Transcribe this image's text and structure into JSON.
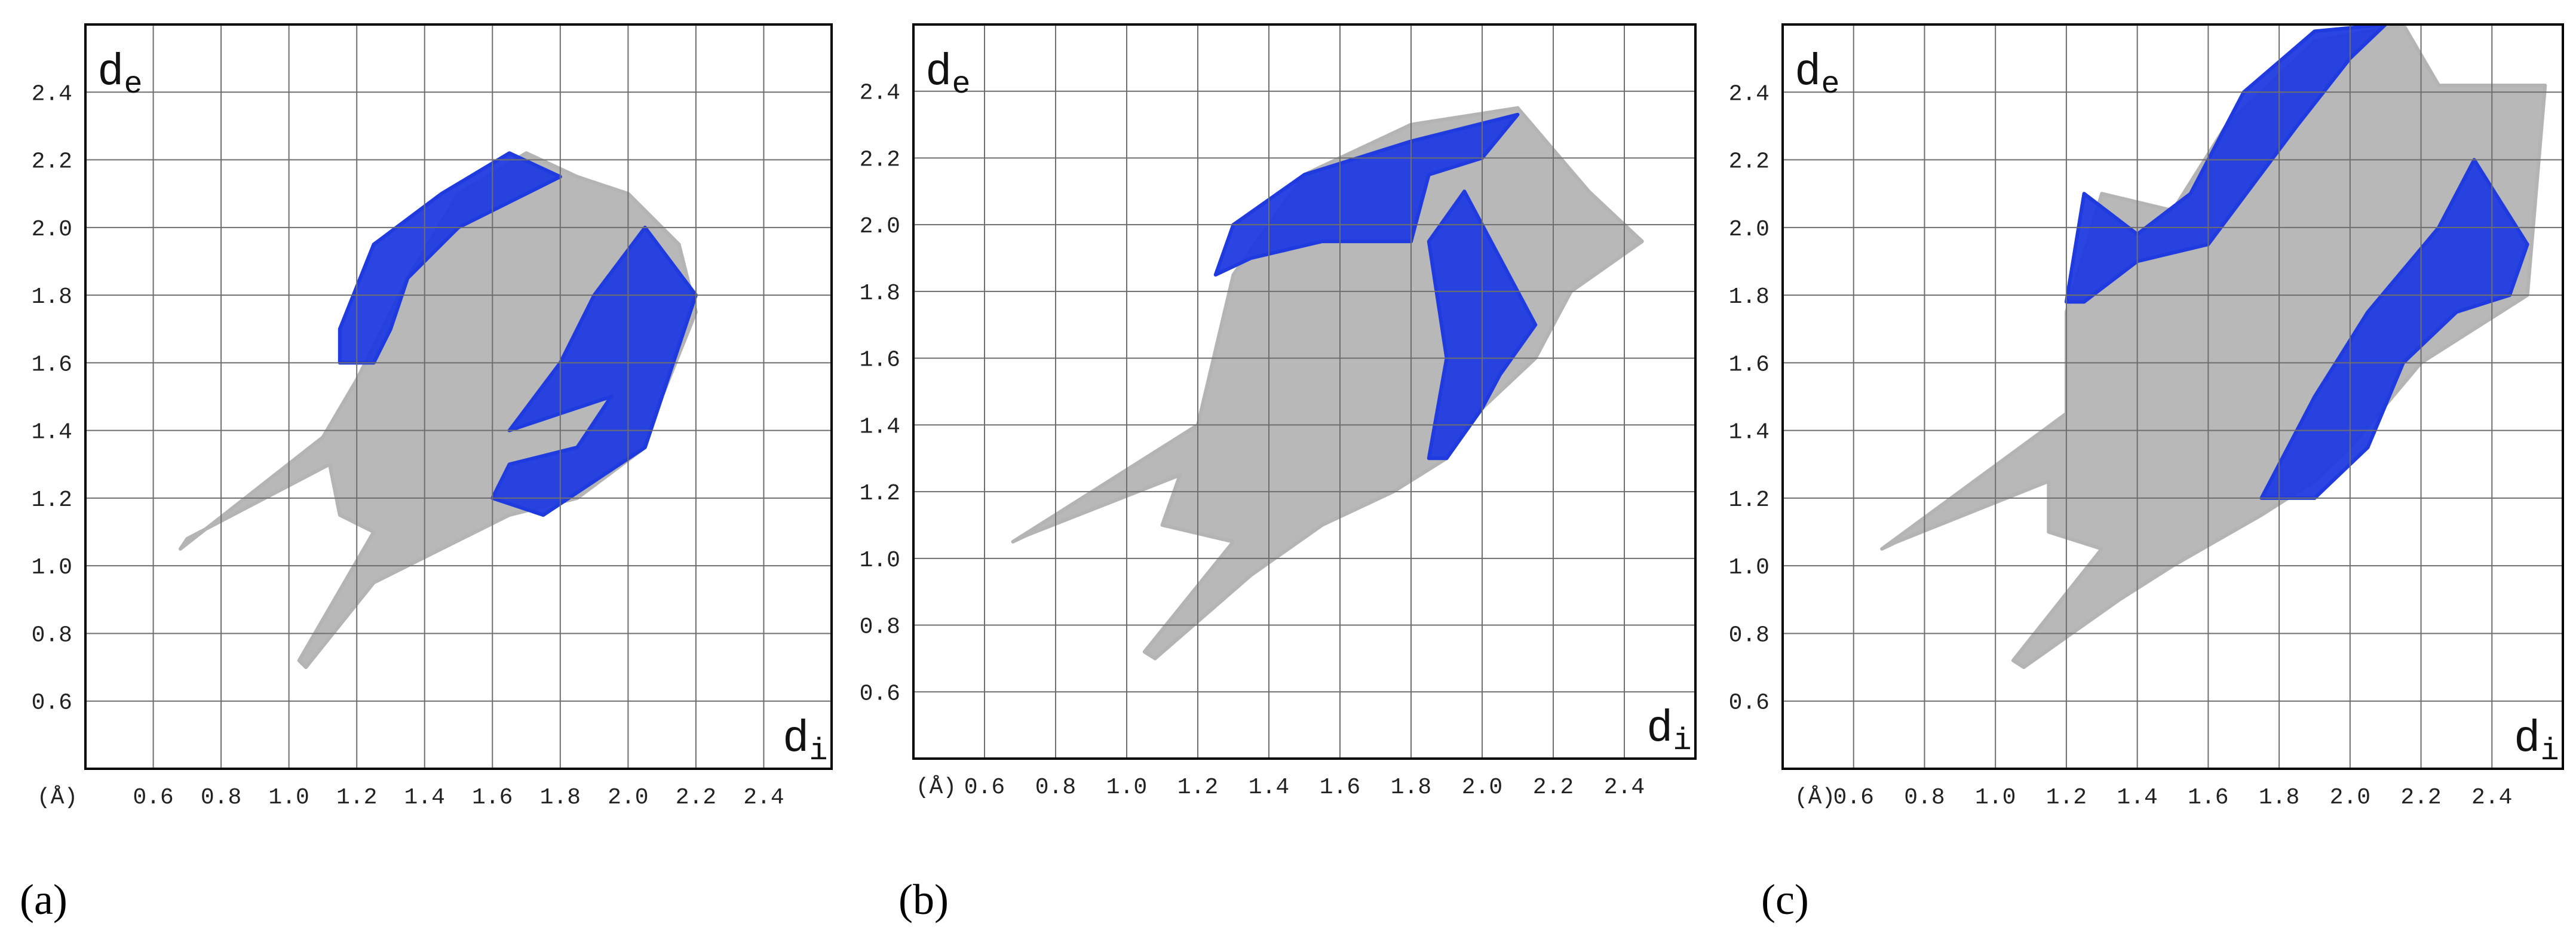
{
  "chart_data": [
    {
      "type": "fingerprint",
      "panel_label": "(a)",
      "unit_label": "(Å)",
      "ylabel": "d",
      "ylabel_sub": "e",
      "xlabel": "d",
      "xlabel_sub": "i",
      "xlim": [
        0.4,
        2.6
      ],
      "ylim": [
        0.4,
        2.6
      ],
      "xticks": [
        0.6,
        0.8,
        {
          "value": 1,
          "label": "1.0"
        },
        1.2,
        1.4,
        1.6,
        1.8,
        {
          "value": 2,
          "label": "2.0"
        },
        2.2,
        2.4
      ],
      "yticks": [
        0.6,
        0.8,
        {
          "value": 1,
          "label": "1.0"
        },
        1.2,
        1.4,
        1.6,
        1.8,
        {
          "value": 2,
          "label": "2.0"
        },
        2.2,
        2.4
      ],
      "grid": true,
      "series": [
        {
          "color": "#b4b4b4",
          "x": [
            0.68,
            1.1,
            1.2,
            1.35,
            1.5,
            1.7,
            1.85,
            2.0,
            2.15,
            2.2,
            2.1,
            2.05,
            1.85,
            1.65,
            1.45,
            1.25,
            1.05,
            1.03,
            1.25,
            1.15,
            1.12,
            0.7
          ],
          "y": [
            1.05,
            1.38,
            1.55,
            1.85,
            2.1,
            2.22,
            2.15,
            2.1,
            1.95,
            1.75,
            1.5,
            1.35,
            1.2,
            1.15,
            1.05,
            0.95,
            0.7,
            0.72,
            1.1,
            1.15,
            1.3,
            1.08
          ]
        },
        {
          "color": "#1f3be0",
          "x": [
            1.15,
            1.25,
            1.45,
            1.65,
            1.8,
            1.7,
            1.5,
            1.35,
            1.3,
            1.25,
            1.15
          ],
          "y": [
            1.7,
            1.95,
            2.1,
            2.22,
            2.15,
            2.1,
            2.0,
            1.85,
            1.7,
            1.6,
            1.6
          ]
        },
        {
          "color": "#1f3be0",
          "x": [
            1.65,
            1.8,
            1.9,
            2.05,
            2.2,
            2.1,
            2.05,
            1.9,
            1.75,
            1.6,
            1.65,
            1.85,
            1.95,
            1.8
          ],
          "y": [
            1.4,
            1.6,
            1.8,
            2.0,
            1.8,
            1.5,
            1.35,
            1.25,
            1.15,
            1.2,
            1.3,
            1.35,
            1.5,
            1.45
          ]
        }
      ]
    },
    {
      "type": "fingerprint",
      "panel_label": "(b)",
      "unit_label": "(Å)",
      "ylabel": "d",
      "ylabel_sub": "e",
      "xlabel": "d",
      "xlabel_sub": "i",
      "xlim": [
        0.4,
        2.6
      ],
      "ylim": [
        0.4,
        2.6
      ],
      "xticks": [
        0.6,
        0.8,
        {
          "value": 1,
          "label": "1.0"
        },
        1.2,
        1.4,
        1.6,
        1.8,
        {
          "value": 2,
          "label": "2.0"
        },
        2.2,
        2.4
      ],
      "yticks": [
        0.6,
        0.8,
        {
          "value": 1,
          "label": "1.0"
        },
        1.2,
        1.4,
        1.6,
        1.8,
        {
          "value": 2,
          "label": "2.0"
        },
        2.2,
        2.4
      ],
      "grid": true,
      "series": [
        {
          "color": "#b4b4b4",
          "x": [
            0.68,
            1.2,
            1.3,
            1.5,
            1.8,
            2.1,
            2.3,
            2.45,
            2.25,
            2.15,
            2.0,
            1.9,
            1.75,
            1.55,
            1.35,
            1.08,
            1.05,
            1.3,
            1.1,
            1.15,
            0.72
          ],
          "y": [
            1.05,
            1.4,
            1.85,
            2.15,
            2.3,
            2.35,
            2.1,
            1.95,
            1.8,
            1.6,
            1.45,
            1.3,
            1.2,
            1.1,
            0.95,
            0.7,
            0.72,
            1.05,
            1.1,
            1.25,
            1.07
          ]
        },
        {
          "color": "#1f3be0",
          "x": [
            1.25,
            1.3,
            1.5,
            1.8,
            2.1,
            2.0,
            1.85,
            1.8,
            1.55,
            1.35
          ],
          "y": [
            1.85,
            2.0,
            2.15,
            2.25,
            2.33,
            2.2,
            2.15,
            1.95,
            1.95,
            1.9
          ]
        },
        {
          "color": "#1f3be0",
          "x": [
            1.85,
            1.9,
            1.85,
            1.95,
            2.15,
            2.05,
            2.0,
            1.9
          ],
          "y": [
            1.3,
            1.6,
            1.95,
            2.1,
            1.7,
            1.55,
            1.45,
            1.3
          ]
        }
      ]
    },
    {
      "type": "fingerprint",
      "panel_label": "(c)",
      "unit_label": "(Å)",
      "ylabel": "d",
      "ylabel_sub": "e",
      "xlabel": "d",
      "xlabel_sub": "i",
      "xlim": [
        0.4,
        2.6
      ],
      "ylim": [
        0.4,
        2.6
      ],
      "xticks": [
        0.6,
        0.8,
        {
          "value": 1,
          "label": "1.0"
        },
        1.2,
        1.4,
        1.6,
        1.8,
        {
          "value": 2,
          "label": "2.0"
        },
        2.2,
        2.4
      ],
      "yticks": [
        0.6,
        0.8,
        {
          "value": 1,
          "label": "1.0"
        },
        1.2,
        1.4,
        1.6,
        1.8,
        {
          "value": 2,
          "label": "2.0"
        },
        2.2,
        2.4
      ],
      "grid": true,
      "series": [
        {
          "color": "#b4b4b4",
          "x": [
            0.68,
            1.2,
            1.2,
            1.3,
            1.5,
            1.65,
            1.9,
            2.15,
            2.25,
            2.55,
            2.5,
            2.35,
            2.2,
            2.0,
            1.9,
            1.75,
            1.5,
            1.35,
            1.08,
            1.05,
            1.3,
            1.15,
            1.15,
            0.72
          ],
          "y": [
            1.05,
            1.45,
            1.75,
            2.1,
            2.05,
            2.3,
            2.55,
            2.6,
            2.42,
            2.42,
            1.8,
            1.7,
            1.6,
            1.35,
            1.25,
            1.15,
            1.0,
            0.9,
            0.7,
            0.72,
            1.05,
            1.1,
            1.25,
            1.07
          ]
        },
        {
          "color": "#1f3be0",
          "x": [
            1.2,
            1.25,
            1.4,
            1.55,
            1.7,
            1.9,
            2.1,
            2.0,
            1.85,
            1.6,
            1.4,
            1.25
          ],
          "y": [
            1.78,
            2.1,
            1.98,
            2.1,
            2.4,
            2.58,
            2.6,
            2.5,
            2.3,
            1.95,
            1.9,
            1.78
          ]
        },
        {
          "color": "#1f3be0",
          "x": [
            1.75,
            1.9,
            2.05,
            2.25,
            2.35,
            2.5,
            2.45,
            2.3,
            2.15,
            2.05,
            1.9
          ],
          "y": [
            1.2,
            1.5,
            1.75,
            2.0,
            2.2,
            1.95,
            1.8,
            1.75,
            1.6,
            1.35,
            1.2
          ]
        }
      ]
    }
  ]
}
